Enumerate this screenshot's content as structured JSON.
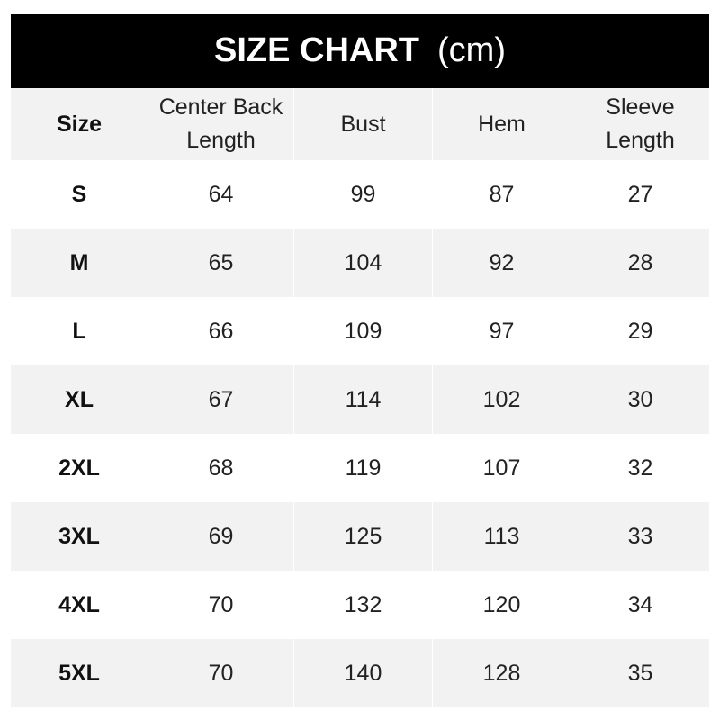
{
  "title": {
    "main": "SIZE CHART",
    "unit": "(cm)"
  },
  "colors": {
    "title_bg": "#000000",
    "title_text": "#ffffff",
    "stripe": "#f2f2f2"
  },
  "chart_data": {
    "type": "table",
    "title": "SIZE CHART (cm)",
    "columns": [
      "Size",
      "Center Back Length",
      "Bust",
      "Hem",
      "Sleeve Length"
    ],
    "header_lines": [
      [
        "Size"
      ],
      [
        "Center Back",
        "Length"
      ],
      [
        "Bust"
      ],
      [
        "Hem"
      ],
      [
        "Sleeve",
        "Length"
      ]
    ],
    "rows": [
      [
        "S",
        "64",
        "99",
        "87",
        "27"
      ],
      [
        "M",
        "65",
        "104",
        "92",
        "28"
      ],
      [
        "L",
        "66",
        "109",
        "97",
        "29"
      ],
      [
        "XL",
        "67",
        "114",
        "102",
        "30"
      ],
      [
        "2XL",
        "68",
        "119",
        "107",
        "32"
      ],
      [
        "3XL",
        "69",
        "125",
        "113",
        "33"
      ],
      [
        "4XL",
        "70",
        "132",
        "120",
        "34"
      ],
      [
        "5XL",
        "70",
        "140",
        "128",
        "35"
      ]
    ]
  }
}
